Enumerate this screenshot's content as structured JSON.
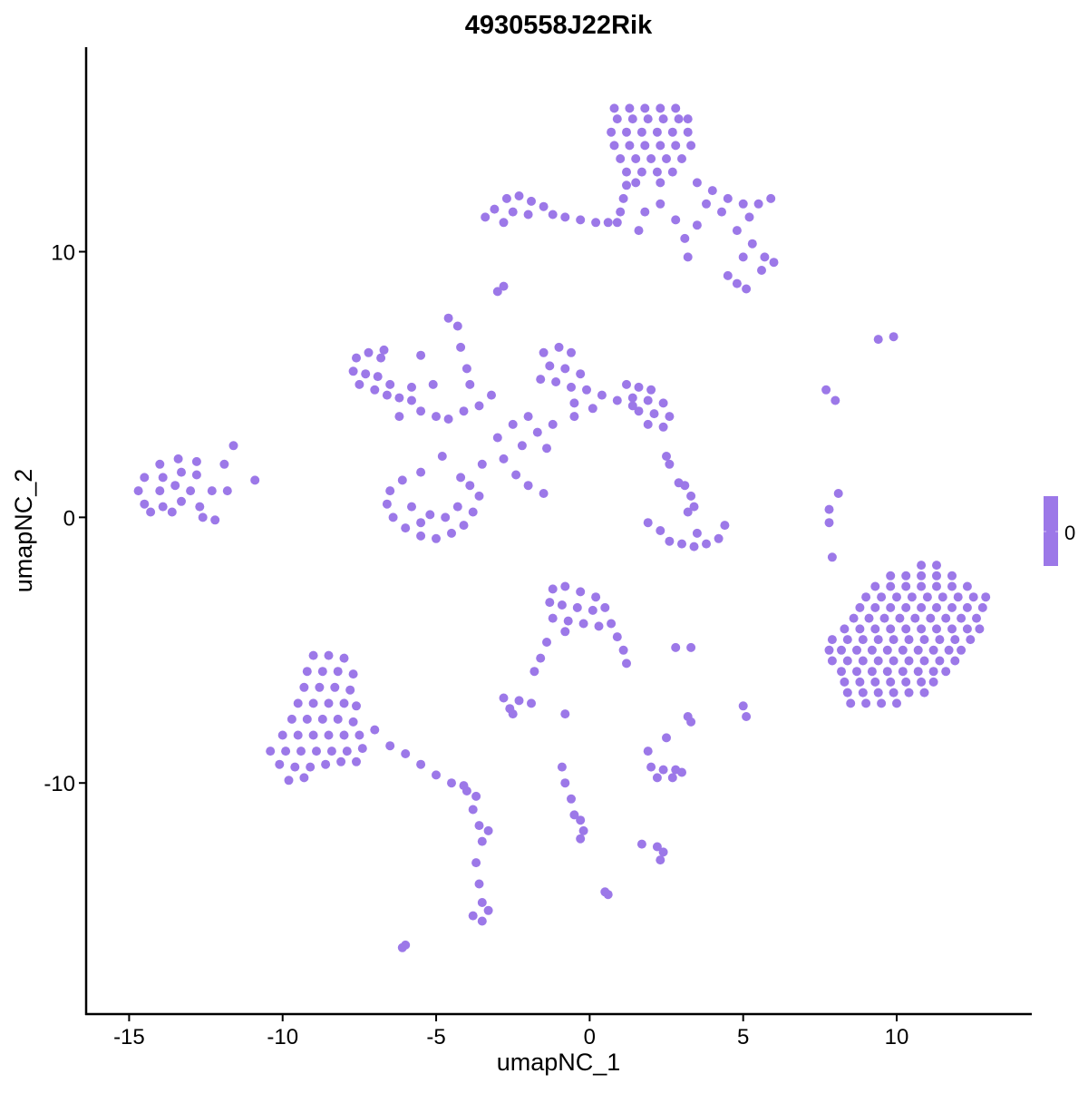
{
  "chart_data": {
    "type": "scatter",
    "title": "4930558J22Rik",
    "xlabel": "umapNC_1",
    "ylabel": "umapNC_2",
    "xlim": [
      -16.4,
      14.4
    ],
    "ylim": [
      -18.7,
      17.7
    ],
    "x_ticks": [
      -15,
      -10,
      -5,
      0,
      5,
      10
    ],
    "x_tick_labels": [
      "-15",
      "-10",
      "-5",
      "0",
      "5",
      "10"
    ],
    "y_ticks": [
      -10,
      0,
      10
    ],
    "y_tick_labels": [
      "-10",
      "0",
      "10"
    ],
    "grid": false,
    "point_color": "#9C78E8",
    "legend": {
      "position": "right",
      "type": "colorbar",
      "labels": [
        "0"
      ],
      "color": "#9C78E8"
    },
    "points": [
      [
        0.8,
        15.4
      ],
      [
        1.3,
        15.4
      ],
      [
        1.8,
        15.4
      ],
      [
        2.3,
        15.4
      ],
      [
        2.8,
        15.4
      ],
      [
        0.9,
        15
      ],
      [
        1.4,
        15
      ],
      [
        1.9,
        15
      ],
      [
        2.4,
        15
      ],
      [
        2.9,
        15
      ],
      [
        3.2,
        15
      ],
      [
        0.7,
        14.5
      ],
      [
        1.2,
        14.5
      ],
      [
        1.7,
        14.5
      ],
      [
        2.2,
        14.5
      ],
      [
        2.7,
        14.5
      ],
      [
        3.2,
        14.5
      ],
      [
        0.8,
        14
      ],
      [
        1.3,
        14
      ],
      [
        1.8,
        14
      ],
      [
        2.3,
        14
      ],
      [
        2.8,
        14
      ],
      [
        3.3,
        14
      ],
      [
        1,
        13.5
      ],
      [
        1.5,
        13.5
      ],
      [
        2,
        13.5
      ],
      [
        2.5,
        13.5
      ],
      [
        3,
        13.5
      ],
      [
        1.2,
        13
      ],
      [
        1.7,
        13
      ],
      [
        2.2,
        13
      ],
      [
        2.7,
        13
      ],
      [
        1.5,
        12.6
      ],
      [
        2.3,
        12.6
      ],
      [
        3.5,
        12.6
      ],
      [
        4,
        12.3
      ],
      [
        4.5,
        12
      ],
      [
        5,
        11.8
      ],
      [
        5.5,
        11.8
      ],
      [
        5.9,
        12
      ],
      [
        3.8,
        11.8
      ],
      [
        4.3,
        11.5
      ],
      [
        5.2,
        11.3
      ],
      [
        4.8,
        10.8
      ],
      [
        5.3,
        10.3
      ],
      [
        5.7,
        9.8
      ],
      [
        6,
        9.6
      ],
      [
        5.6,
        9.3
      ],
      [
        5,
        9.8
      ],
      [
        4.5,
        9.1
      ],
      [
        4.8,
        8.8
      ],
      [
        5.1,
        8.6
      ],
      [
        3.5,
        11
      ],
      [
        3.1,
        10.5
      ],
      [
        2.8,
        11.2
      ],
      [
        1.2,
        12.5
      ],
      [
        1.1,
        12
      ],
      [
        1,
        11.5
      ],
      [
        0.9,
        11.1
      ],
      [
        1.8,
        11.5
      ],
      [
        2.3,
        11.8
      ],
      [
        1.6,
        10.8
      ],
      [
        3.2,
        9.8
      ],
      [
        -3.1,
        11.6
      ],
      [
        -2.7,
        12
      ],
      [
        -2.3,
        12.1
      ],
      [
        -1.9,
        11.9
      ],
      [
        -2.5,
        11.5
      ],
      [
        -2,
        11.4
      ],
      [
        -1.5,
        11.7
      ],
      [
        -2.8,
        11.1
      ],
      [
        -1.2,
        11.4
      ],
      [
        -0.8,
        11.3
      ],
      [
        -0.3,
        11.2
      ],
      [
        0.2,
        11.1
      ],
      [
        0.6,
        11.1
      ],
      [
        -3.4,
        11.3
      ],
      [
        -2.8,
        8.7
      ],
      [
        -3,
        8.5
      ],
      [
        -4.6,
        7.5
      ],
      [
        -4.3,
        7.2
      ],
      [
        -4.2,
        6.4
      ],
      [
        -4,
        5.6
      ],
      [
        -3.9,
        5
      ],
      [
        -7.6,
        6
      ],
      [
        -7.2,
        6.2
      ],
      [
        -6.8,
        6
      ],
      [
        -7.7,
        5.5
      ],
      [
        -7.3,
        5.4
      ],
      [
        -6.9,
        5.3
      ],
      [
        -6.5,
        5
      ],
      [
        -7.5,
        5
      ],
      [
        -7,
        4.8
      ],
      [
        -6.6,
        4.6
      ],
      [
        -6.2,
        4.5
      ],
      [
        -5.8,
        4.4
      ],
      [
        -5.5,
        4
      ],
      [
        -5,
        3.8
      ],
      [
        -4.6,
        3.7
      ],
      [
        -4.1,
        4
      ],
      [
        -3.6,
        4.2
      ],
      [
        -5.5,
        6.1
      ],
      [
        -5.1,
        5
      ],
      [
        -1.5,
        6.2
      ],
      [
        -1,
        6.4
      ],
      [
        -0.6,
        6.2
      ],
      [
        -1.3,
        5.7
      ],
      [
        -0.8,
        5.6
      ],
      [
        -0.3,
        5.4
      ],
      [
        -1.6,
        5.2
      ],
      [
        -1.1,
        5.1
      ],
      [
        -0.6,
        4.9
      ],
      [
        -0.1,
        4.8
      ],
      [
        0.4,
        4.6
      ],
      [
        0.9,
        4.4
      ],
      [
        1.4,
        4.2
      ],
      [
        -0.5,
        4.3
      ],
      [
        0.1,
        4.1
      ],
      [
        1.2,
        5
      ],
      [
        1.6,
        4.9
      ],
      [
        2,
        4.8
      ],
      [
        1.4,
        4.5
      ],
      [
        1.9,
        4.4
      ],
      [
        2.4,
        4.3
      ],
      [
        1.6,
        4
      ],
      [
        2.1,
        3.9
      ],
      [
        2.6,
        3.8
      ],
      [
        1.9,
        3.5
      ],
      [
        2.4,
        3.4
      ],
      [
        -2,
        3.8
      ],
      [
        -2.5,
        3.5
      ],
      [
        -3,
        3
      ],
      [
        -2.2,
        2.7
      ],
      [
        -2.8,
        2.2
      ],
      [
        -3.5,
        2
      ],
      [
        -4.2,
        1.5
      ],
      [
        -4.8,
        2.3
      ],
      [
        -5.5,
        1.7
      ],
      [
        -2.4,
        1.6
      ],
      [
        -2,
        1.2
      ],
      [
        -1.5,
        0.9
      ],
      [
        -1.7,
        3.2
      ],
      [
        -1.2,
        3.5
      ],
      [
        -0.5,
        3.8
      ],
      [
        -1.4,
        2.6
      ],
      [
        -6.2,
        3.8
      ],
      [
        -5.8,
        4.9
      ],
      [
        -6.7,
        6.3
      ],
      [
        2.5,
        2.3
      ],
      [
        -3.2,
        4.6
      ],
      [
        -6.5,
        1
      ],
      [
        -6.6,
        0.5
      ],
      [
        -6.4,
        0
      ],
      [
        -6,
        -0.4
      ],
      [
        -5.5,
        -0.7
      ],
      [
        -5,
        -0.8
      ],
      [
        -4.5,
        -0.6
      ],
      [
        -4.1,
        -0.3
      ],
      [
        -3.8,
        0.2
      ],
      [
        -3.6,
        0.8
      ],
      [
        -3.9,
        1.2
      ],
      [
        -5.8,
        0.4
      ],
      [
        -5.2,
        0.1
      ],
      [
        -4.7,
        0
      ],
      [
        -4.3,
        0.4
      ],
      [
        -6.1,
        1.4
      ],
      [
        -5.5,
        -0.2
      ],
      [
        -14.5,
        1.5
      ],
      [
        -14.7,
        1
      ],
      [
        -14.5,
        0.5
      ],
      [
        -14,
        2
      ],
      [
        -13.9,
        1.5
      ],
      [
        -14,
        1
      ],
      [
        -13.9,
        0.4
      ],
      [
        -13.4,
        2.2
      ],
      [
        -13.3,
        1.7
      ],
      [
        -13.5,
        1.2
      ],
      [
        -13.3,
        0.6
      ],
      [
        -12.8,
        2.1
      ],
      [
        -12.8,
        1.6
      ],
      [
        -13,
        1
      ],
      [
        -12.7,
        0.4
      ],
      [
        -12.3,
        1
      ],
      [
        -12.6,
        0
      ],
      [
        -12.2,
        -0.1
      ],
      [
        -11.6,
        2.7
      ],
      [
        -11.9,
        2
      ],
      [
        -11.8,
        1
      ],
      [
        -10.9,
        1.4
      ],
      [
        -14.3,
        0.2
      ],
      [
        -13.6,
        0.2
      ],
      [
        1.9,
        -0.2
      ],
      [
        2.3,
        -0.5
      ],
      [
        2.6,
        -0.9
      ],
      [
        3,
        -1
      ],
      [
        3.4,
        -1.1
      ],
      [
        3.8,
        -1
      ],
      [
        4.2,
        -0.8
      ],
      [
        4.4,
        -0.3
      ],
      [
        3.5,
        -0.6
      ],
      [
        3.2,
        0.2
      ],
      [
        3.3,
        0.8
      ],
      [
        3.1,
        1.2
      ],
      [
        2.9,
        1.3
      ],
      [
        2.6,
        2
      ],
      [
        3.4,
        0.4
      ],
      [
        7.7,
        4.8
      ],
      [
        8,
        4.4
      ],
      [
        9.4,
        6.7
      ],
      [
        9.9,
        6.8
      ],
      [
        7.8,
        0.3
      ],
      [
        7.8,
        -0.2
      ],
      [
        8.1,
        0.9
      ],
      [
        7.9,
        -1.5
      ],
      [
        10.8,
        -1.8
      ],
      [
        11.3,
        -1.8
      ],
      [
        9.8,
        -2.2
      ],
      [
        10.3,
        -2.2
      ],
      [
        10.8,
        -2.2
      ],
      [
        11.3,
        -2.2
      ],
      [
        11.8,
        -2.2
      ],
      [
        9.3,
        -2.6
      ],
      [
        9.8,
        -2.6
      ],
      [
        10.3,
        -2.6
      ],
      [
        10.8,
        -2.6
      ],
      [
        11.3,
        -2.6
      ],
      [
        11.8,
        -2.6
      ],
      [
        12.3,
        -2.6
      ],
      [
        9,
        -3
      ],
      [
        9.5,
        -3
      ],
      [
        10,
        -3
      ],
      [
        10.5,
        -3
      ],
      [
        11,
        -3
      ],
      [
        11.5,
        -3
      ],
      [
        12,
        -3
      ],
      [
        12.5,
        -3
      ],
      [
        12.9,
        -3
      ],
      [
        8.8,
        -3.4
      ],
      [
        9.3,
        -3.4
      ],
      [
        9.8,
        -3.4
      ],
      [
        10.3,
        -3.4
      ],
      [
        10.8,
        -3.4
      ],
      [
        11.3,
        -3.4
      ],
      [
        11.8,
        -3.4
      ],
      [
        12.3,
        -3.4
      ],
      [
        12.8,
        -3.4
      ],
      [
        8.6,
        -3.8
      ],
      [
        9.1,
        -3.8
      ],
      [
        9.6,
        -3.8
      ],
      [
        10.1,
        -3.8
      ],
      [
        10.6,
        -3.8
      ],
      [
        11.1,
        -3.8
      ],
      [
        11.6,
        -3.8
      ],
      [
        12.1,
        -3.8
      ],
      [
        12.6,
        -3.8
      ],
      [
        8.3,
        -4.2
      ],
      [
        8.8,
        -4.2
      ],
      [
        9.3,
        -4.2
      ],
      [
        9.8,
        -4.2
      ],
      [
        10.3,
        -4.2
      ],
      [
        10.8,
        -4.2
      ],
      [
        11.3,
        -4.2
      ],
      [
        11.8,
        -4.2
      ],
      [
        12.3,
        -4.2
      ],
      [
        12.7,
        -4.2
      ],
      [
        7.9,
        -4.6
      ],
      [
        8.4,
        -4.6
      ],
      [
        8.9,
        -4.6
      ],
      [
        9.4,
        -4.6
      ],
      [
        9.9,
        -4.6
      ],
      [
        10.4,
        -4.6
      ],
      [
        10.9,
        -4.6
      ],
      [
        11.4,
        -4.6
      ],
      [
        11.9,
        -4.6
      ],
      [
        12.4,
        -4.6
      ],
      [
        7.8,
        -5
      ],
      [
        8.2,
        -5
      ],
      [
        8.7,
        -5
      ],
      [
        9.2,
        -5
      ],
      [
        9.7,
        -5
      ],
      [
        10.2,
        -5
      ],
      [
        10.7,
        -5
      ],
      [
        11.2,
        -5
      ],
      [
        11.7,
        -5
      ],
      [
        12.1,
        -5
      ],
      [
        7.9,
        -5.4
      ],
      [
        8.4,
        -5.4
      ],
      [
        8.9,
        -5.4
      ],
      [
        9.4,
        -5.4
      ],
      [
        9.9,
        -5.4
      ],
      [
        10.4,
        -5.4
      ],
      [
        10.9,
        -5.4
      ],
      [
        11.4,
        -5.4
      ],
      [
        11.9,
        -5.4
      ],
      [
        8.2,
        -5.8
      ],
      [
        8.7,
        -5.8
      ],
      [
        9.2,
        -5.8
      ],
      [
        9.7,
        -5.8
      ],
      [
        10.2,
        -5.8
      ],
      [
        10.7,
        -5.8
      ],
      [
        11.2,
        -5.8
      ],
      [
        11.6,
        -5.8
      ],
      [
        8.3,
        -6.2
      ],
      [
        8.8,
        -6.2
      ],
      [
        9.3,
        -6.2
      ],
      [
        9.8,
        -6.2
      ],
      [
        10.3,
        -6.2
      ],
      [
        10.8,
        -6.2
      ],
      [
        11.2,
        -6.2
      ],
      [
        8.4,
        -6.6
      ],
      [
        8.9,
        -6.6
      ],
      [
        9.4,
        -6.6
      ],
      [
        9.9,
        -6.6
      ],
      [
        10.4,
        -6.6
      ],
      [
        10.9,
        -6.6
      ],
      [
        8.5,
        -7
      ],
      [
        9,
        -7
      ],
      [
        9.5,
        -7
      ],
      [
        10,
        -7
      ],
      [
        -1.2,
        -2.7
      ],
      [
        -0.8,
        -2.6
      ],
      [
        -0.3,
        -2.8
      ],
      [
        0.2,
        -3
      ],
      [
        -1.3,
        -3.2
      ],
      [
        -0.9,
        -3.3
      ],
      [
        -0.4,
        -3.4
      ],
      [
        0.1,
        -3.5
      ],
      [
        0.5,
        -3.4
      ],
      [
        -1.2,
        -3.8
      ],
      [
        -0.7,
        -3.9
      ],
      [
        -0.2,
        -4
      ],
      [
        0.3,
        -4.1
      ],
      [
        0.7,
        -4
      ],
      [
        -0.8,
        -4.3
      ],
      [
        0.9,
        -4.5
      ],
      [
        1.1,
        -5
      ],
      [
        1.2,
        -5.5
      ],
      [
        -1.4,
        -4.7
      ],
      [
        -1.6,
        -5.3
      ],
      [
        -1.8,
        -5.8
      ],
      [
        2.8,
        -4.9
      ],
      [
        3.3,
        -4.9
      ],
      [
        -2.8,
        -6.8
      ],
      [
        -2.3,
        -6.9
      ],
      [
        -2.6,
        -7.2
      ],
      [
        -1.9,
        -7
      ],
      [
        -2.5,
        -7.4
      ],
      [
        -0.8,
        -7.4
      ],
      [
        3.2,
        -7.5
      ],
      [
        3.3,
        -7.7
      ],
      [
        5,
        -7.1
      ],
      [
        5.1,
        -7.5
      ],
      [
        -9,
        -5.2
      ],
      [
        -8.5,
        -5.2
      ],
      [
        -8,
        -5.3
      ],
      [
        -9.2,
        -5.8
      ],
      [
        -8.7,
        -5.8
      ],
      [
        -8.2,
        -5.8
      ],
      [
        -7.7,
        -5.9
      ],
      [
        -9.3,
        -6.4
      ],
      [
        -8.8,
        -6.4
      ],
      [
        -8.3,
        -6.4
      ],
      [
        -7.8,
        -6.5
      ],
      [
        -9.5,
        -7
      ],
      [
        -9,
        -7
      ],
      [
        -8.5,
        -7
      ],
      [
        -8,
        -7
      ],
      [
        -7.6,
        -7.1
      ],
      [
        -9.7,
        -7.6
      ],
      [
        -9.2,
        -7.6
      ],
      [
        -8.7,
        -7.6
      ],
      [
        -8.2,
        -7.6
      ],
      [
        -7.7,
        -7.7
      ],
      [
        -10,
        -8.2
      ],
      [
        -9.5,
        -8.2
      ],
      [
        -9,
        -8.2
      ],
      [
        -8.5,
        -8.2
      ],
      [
        -8,
        -8.2
      ],
      [
        -7.5,
        -8.2
      ],
      [
        -7,
        -8
      ],
      [
        -10.4,
        -8.8
      ],
      [
        -9.9,
        -8.8
      ],
      [
        -9.4,
        -8.8
      ],
      [
        -8.9,
        -8.8
      ],
      [
        -8.4,
        -8.8
      ],
      [
        -7.9,
        -8.8
      ],
      [
        -7.4,
        -8.7
      ],
      [
        -10.1,
        -9.3
      ],
      [
        -9.6,
        -9.4
      ],
      [
        -9.1,
        -9.4
      ],
      [
        -8.6,
        -9.3
      ],
      [
        -8.1,
        -9.2
      ],
      [
        -7.6,
        -9.2
      ],
      [
        -9.8,
        -9.9
      ],
      [
        -9.3,
        -9.8
      ],
      [
        -6.5,
        -8.6
      ],
      [
        -6,
        -8.9
      ],
      [
        -5.5,
        -9.3
      ],
      [
        -5,
        -9.7
      ],
      [
        -4.5,
        -10
      ],
      [
        -4,
        -10.3
      ],
      [
        -3.7,
        -10.5
      ],
      [
        -4.1,
        -10.1
      ],
      [
        -3.8,
        -11
      ],
      [
        -3.6,
        -11.6
      ],
      [
        -3.5,
        -12.2
      ],
      [
        -3.7,
        -13
      ],
      [
        -3.6,
        -13.8
      ],
      [
        -3.5,
        -14.5
      ],
      [
        -3.8,
        -15
      ],
      [
        -3.5,
        -15.2
      ],
      [
        -3.3,
        -14.8
      ],
      [
        -3.3,
        -11.8
      ],
      [
        -0.9,
        -9.4
      ],
      [
        -0.8,
        -10
      ],
      [
        -0.6,
        -10.6
      ],
      [
        -0.5,
        -11.2
      ],
      [
        -0.3,
        -11.4
      ],
      [
        -0.2,
        -11.8
      ],
      [
        -0.3,
        -12.1
      ],
      [
        2,
        -9.4
      ],
      [
        2.4,
        -9.5
      ],
      [
        2.8,
        -9.5
      ],
      [
        3,
        -9.6
      ],
      [
        2.2,
        -9.8
      ],
      [
        2.7,
        -9.8
      ],
      [
        1.9,
        -8.8
      ],
      [
        2.5,
        -8.3
      ],
      [
        1.7,
        -12.3
      ],
      [
        2.2,
        -12.4
      ],
      [
        2.4,
        -12.6
      ],
      [
        2.3,
        -12.9
      ],
      [
        0.5,
        -14.1
      ],
      [
        0.6,
        -14.2
      ],
      [
        -6.1,
        -16.2
      ],
      [
        -6,
        -16.1
      ]
    ]
  }
}
